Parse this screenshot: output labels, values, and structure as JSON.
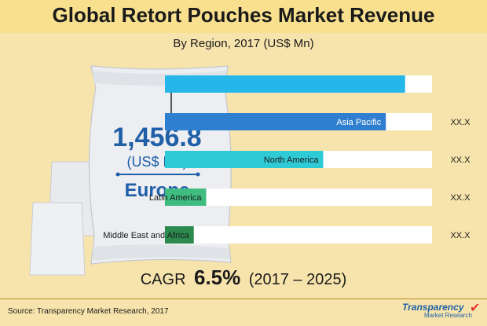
{
  "title": "Global Retort Pouches Market Revenue",
  "subtitle": "By Region, 2017 (US$ Mn)",
  "highlight": {
    "value": "1,456.8",
    "unit": "(US$ Mn)",
    "region": "Europe"
  },
  "cagr": {
    "label": "CAGR",
    "value": "6.5%",
    "period": "(2017 – 2025)"
  },
  "source": "Source: Transparency Market Research, 2017",
  "logo": {
    "top": "Transparency",
    "bottom": "Market Research"
  },
  "colors": {
    "background": "#f7e4ac",
    "europe": "#25b6ea",
    "asia_pacific": "#2f7fd0",
    "north_america": "#2ecad6",
    "latin_america": "#3fbd80",
    "middle_east_africa": "#2d8a4e"
  },
  "chart_data": {
    "type": "bar",
    "orientation": "horizontal",
    "categories": [
      "Europe",
      "Asia Pacific",
      "North America",
      "Latin America",
      "Middle East and Africa"
    ],
    "values": [
      1456.8,
      1340,
      960,
      250,
      175
    ],
    "value_labels": [
      "",
      "XX.X",
      "XX.X",
      "XX.X",
      "XX.X"
    ],
    "xlim": [
      0,
      1620
    ],
    "colors": [
      "#25b6ea",
      "#2f7fd0",
      "#2ecad6",
      "#3fbd80",
      "#2d8a4e"
    ]
  }
}
